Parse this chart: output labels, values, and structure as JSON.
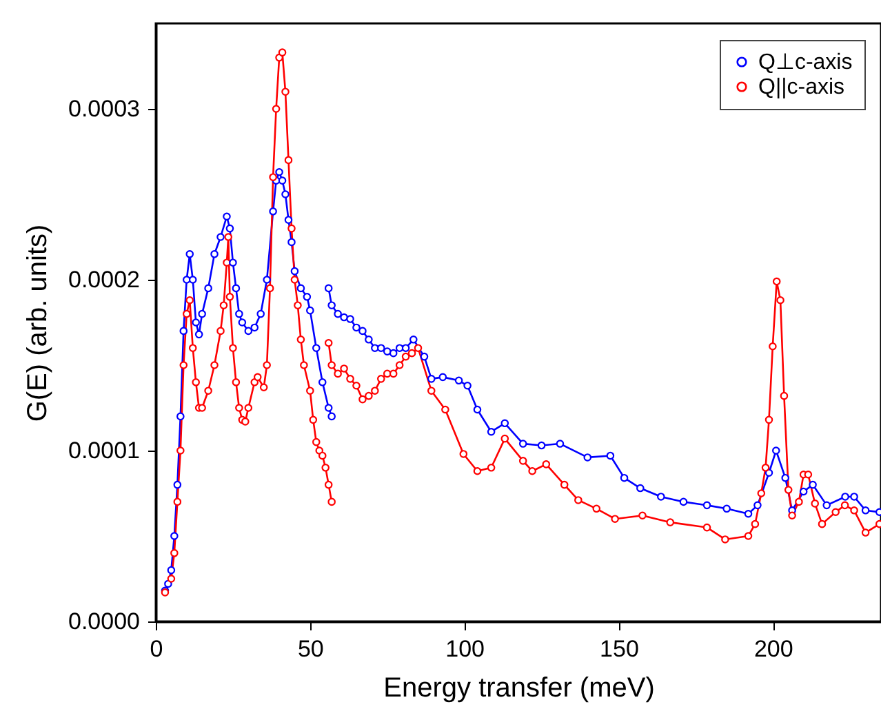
{
  "chart_data": {
    "type": "line",
    "xlabel": "Energy transfer (meV)",
    "ylabel": "G(E) (arb. units)",
    "xlim": [
      0,
      235
    ],
    "xticks": [
      0,
      50,
      100,
      150,
      200
    ],
    "ylim": [
      0,
      0.00035
    ],
    "yticks": [
      {
        "value": 0,
        "label": "0.0000"
      },
      0.0001,
      0.0002,
      0.0003
    ],
    "marker": "circle",
    "line_style": "solid",
    "legend": "top right",
    "grid": false,
    "series": [
      {
        "name": "Q⊥c-axis",
        "color": "#0000ff",
        "x": [
          3,
          4,
          5,
          6,
          7,
          8,
          9,
          10,
          11,
          12,
          13,
          14,
          15,
          17,
          19,
          21,
          23,
          24,
          25,
          26,
          27,
          28,
          30,
          32,
          34,
          36,
          38,
          39,
          40,
          41,
          42,
          43,
          44,
          45,
          47,
          49,
          50,
          52,
          54,
          56,
          57,
          null,
          56,
          57,
          59,
          61,
          63,
          65,
          67,
          69,
          71,
          73,
          75,
          77,
          79,
          81,
          83.5,
          87,
          89.3,
          93,
          98.2,
          101,
          104.2,
          108.7,
          113.1,
          119,
          125,
          131,
          139.9,
          147.3,
          151.8,
          157,
          163.7,
          171,
          178.6,
          185,
          192,
          195,
          198.7,
          201,
          204,
          206.2,
          209.9,
          212.9,
          217.4,
          223.4,
          226.3,
          230,
          234.5
        ],
        "values": [
          1.8e-05,
          2.2e-05,
          3e-05,
          5e-05,
          8e-05,
          0.00012,
          0.00017,
          0.0002,
          0.000215,
          0.0002,
          0.000175,
          0.000168,
          0.00018,
          0.000195,
          0.000215,
          0.000225,
          0.000237,
          0.00023,
          0.00021,
          0.000195,
          0.00018,
          0.000175,
          0.00017,
          0.000172,
          0.00018,
          0.0002,
          0.00024,
          0.000258,
          0.000263,
          0.000258,
          0.00025,
          0.000235,
          0.000222,
          0.000205,
          0.000195,
          0.00019,
          0.000182,
          0.00016,
          0.00014,
          0.000125,
          0.00012,
          null,
          0.000195,
          0.000185,
          0.00018,
          0.000178,
          0.000177,
          0.000172,
          0.00017,
          0.000165,
          0.00016,
          0.00016,
          0.000158,
          0.000157,
          0.00016,
          0.00016,
          0.000165,
          0.000155,
          0.000142,
          0.000143,
          0.000141,
          0.000138,
          0.000124,
          0.000111,
          0.000116,
          0.000104,
          0.000103,
          0.000104,
          9.6e-05,
          9.7e-05,
          8.4e-05,
          7.8e-05,
          7.3e-05,
          7e-05,
          6.8e-05,
          6.6e-05,
          6.3e-05,
          6.8e-05,
          8.7e-05,
          0.0001,
          8.4e-05,
          6.5e-05,
          7.6e-05,
          8e-05,
          6.8e-05,
          7.3e-05,
          7.3e-05,
          6.5e-05,
          6.4e-05
        ]
      },
      {
        "name": "Q||c-axis",
        "color": "#ff0000",
        "x": [
          3,
          5,
          6,
          7,
          8,
          9,
          10,
          11,
          12,
          13,
          14,
          15,
          17,
          19,
          21,
          22,
          23,
          23.5,
          24,
          25,
          26,
          27,
          28,
          29,
          30,
          32,
          33,
          35,
          36,
          37,
          38,
          39,
          40,
          41,
          42,
          43,
          44,
          45,
          46,
          47,
          48,
          50,
          51,
          52,
          53,
          54,
          55,
          56,
          57,
          null,
          56,
          57,
          59,
          61,
          63,
          65,
          67,
          69,
          71,
          73,
          75,
          77,
          79,
          81,
          83,
          85,
          89.3,
          93.8,
          99.7,
          104.2,
          108.7,
          113.1,
          119,
          122,
          126.5,
          132.4,
          136.9,
          142.8,
          148.8,
          157.7,
          166.7,
          178.6,
          184.5,
          192,
          194.2,
          196.2,
          197.6,
          198.7,
          199.9,
          201.2,
          202.4,
          203.6,
          205,
          206.2,
          208.4,
          209.9,
          211.4,
          213.6,
          215.9,
          220.3,
          223.3,
          226.3,
          230,
          234.5
        ],
        "values": [
          1.7e-05,
          2.5e-05,
          4e-05,
          7e-05,
          0.0001,
          0.00015,
          0.00018,
          0.000188,
          0.00016,
          0.00014,
          0.000125,
          0.000125,
          0.000135,
          0.00015,
          0.00017,
          0.000185,
          0.00021,
          0.000225,
          0.00019,
          0.00016,
          0.00014,
          0.000125,
          0.000118,
          0.000117,
          0.000125,
          0.00014,
          0.000143,
          0.000137,
          0.00015,
          0.000195,
          0.00026,
          0.0003,
          0.00033,
          0.000333,
          0.00031,
          0.00027,
          0.00023,
          0.0002,
          0.000185,
          0.000165,
          0.00015,
          0.000135,
          0.000118,
          0.000105,
          0.0001,
          9.7e-05,
          9e-05,
          8e-05,
          7e-05,
          null,
          0.000163,
          0.00015,
          0.000145,
          0.000148,
          0.000142,
          0.000138,
          0.00013,
          0.000132,
          0.000135,
          0.000142,
          0.000145,
          0.000145,
          0.00015,
          0.000155,
          0.000157,
          0.00016,
          0.000135,
          0.000124,
          9.8e-05,
          8.8e-05,
          9e-05,
          0.000107,
          9.4e-05,
          8.8e-05,
          9.2e-05,
          8e-05,
          7.1e-05,
          6.6e-05,
          6e-05,
          6.2e-05,
          5.8e-05,
          5.5e-05,
          4.8e-05,
          5e-05,
          5.7e-05,
          7.5e-05,
          9e-05,
          0.000118,
          0.000161,
          0.000199,
          0.000188,
          0.000132,
          7.7e-05,
          6.2e-05,
          7e-05,
          8.6e-05,
          8.6e-05,
          6.9e-05,
          5.7e-05,
          6.4e-05,
          6.8e-05,
          6.5e-05,
          5.2e-05,
          5.7e-05
        ]
      }
    ]
  }
}
